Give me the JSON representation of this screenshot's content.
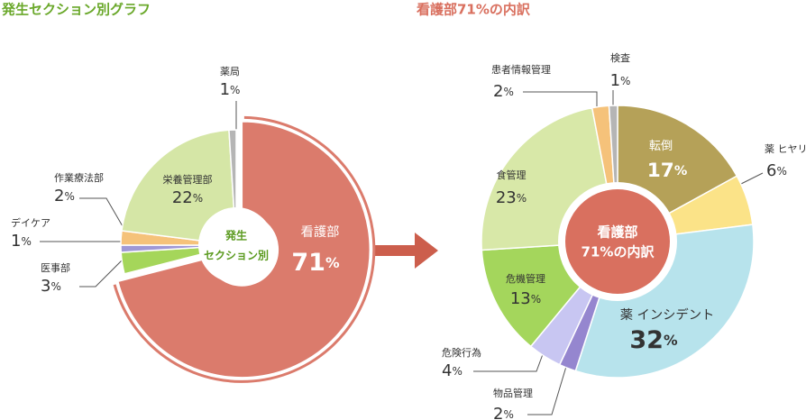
{
  "chart_data": [
    {
      "type": "pie",
      "title": "発生セクション別グラフ",
      "center_label": [
        "発生",
        "セクション別"
      ],
      "categories": [
        "看護部",
        "医事部",
        "デイケア",
        "作業療法部",
        "栄養管理部",
        "薬局"
      ],
      "values": [
        71,
        3,
        1,
        2,
        22,
        1
      ],
      "value_suffix": "%",
      "colors": [
        "#db7b6c",
        "#a5d65a",
        "#9f98d6",
        "#f5c27a",
        "#d5e6a6",
        "#b5b5b5"
      ]
    },
    {
      "type": "pie",
      "title": "看護部71%の内訳",
      "center_label": [
        "看護部",
        "71%の内訳"
      ],
      "categories": [
        "転倒",
        "薬 ヒヤリ",
        "薬 インシデント",
        "物品管理",
        "危険行為",
        "危機管理",
        "食管理",
        "患者情報管理",
        "検査"
      ],
      "values": [
        17,
        6,
        32,
        2,
        4,
        13,
        23,
        2,
        1
      ],
      "value_suffix": "%",
      "colors": [
        "#b5a158",
        "#fbe388",
        "#b7e3ec",
        "#9586cf",
        "#c8c6f2",
        "#a4d65c",
        "#d8e8a8",
        "#f5c27a",
        "#b5b5b5"
      ]
    }
  ]
}
